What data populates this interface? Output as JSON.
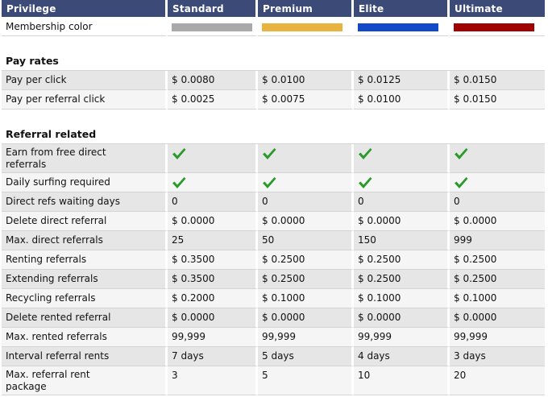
{
  "headers": [
    "Privilege",
    "Standard",
    "Premium",
    "Elite",
    "Ultimate"
  ],
  "membership_color": {
    "label": "Membership color",
    "colors": [
      "#a9a9a9",
      "#e8b43f",
      "#1249c8",
      "#a00000"
    ]
  },
  "sections": [
    {
      "title": "Pay rates",
      "rows": [
        {
          "label": "Pay per click",
          "values": [
            "$ 0.0080",
            "$ 0.0100",
            "$ 0.0125",
            "$ 0.0150"
          ]
        },
        {
          "label": "Pay per referral click",
          "values": [
            "$ 0.0025",
            "$ 0.0075",
            "$ 0.0100",
            "$ 0.0150"
          ]
        }
      ]
    },
    {
      "title": "Referral related",
      "rows": [
        {
          "label": "Earn from free direct referrals",
          "values": [
            "check",
            "check",
            "check",
            "check"
          ]
        },
        {
          "label": "Daily surfing required",
          "values": [
            "check",
            "check",
            "check",
            "check"
          ]
        },
        {
          "label": "Direct refs waiting days",
          "values": [
            "0",
            "0",
            "0",
            "0"
          ]
        },
        {
          "label": "Delete direct referral",
          "values": [
            "$ 0.0000",
            "$ 0.0000",
            "$ 0.0000",
            "$ 0.0000"
          ]
        },
        {
          "label": "Max. direct referrals",
          "values": [
            "25",
            "50",
            "150",
            "999"
          ]
        },
        {
          "label": "Renting referrals",
          "values": [
            "$ 0.3500",
            "$ 0.2500",
            "$ 0.2500",
            "$ 0.2500"
          ]
        },
        {
          "label": "Extending referrals",
          "values": [
            "$ 0.3500",
            "$ 0.2500",
            "$ 0.2500",
            "$ 0.2500"
          ]
        },
        {
          "label": "Recycling referrals",
          "values": [
            "$ 0.2000",
            "$ 0.1000",
            "$ 0.1000",
            "$ 0.1000"
          ]
        },
        {
          "label": "Delete rented referral",
          "values": [
            "$ 0.0000",
            "$ 0.0000",
            "$ 0.0000",
            "$ 0.0000"
          ]
        },
        {
          "label": "Max. rented referrals",
          "values": [
            "99,999",
            "99,999",
            "99,999",
            "99,999"
          ]
        },
        {
          "label": "Interval referral rents",
          "values": [
            "7 days",
            "5 days",
            "4 days",
            "3 days"
          ]
        },
        {
          "label": "Max. referral rent package",
          "values": [
            "3",
            "5",
            "10",
            "20"
          ]
        }
      ]
    }
  ],
  "check_color": "#2a9a2a"
}
